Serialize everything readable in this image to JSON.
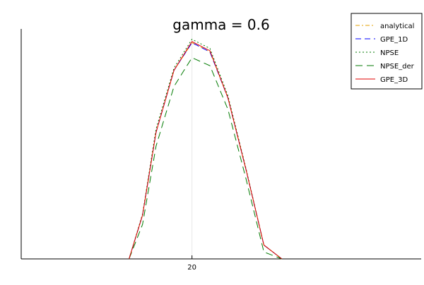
{
  "chart_data": {
    "type": "line",
    "title": "gamma = 0.6",
    "xlabel": "",
    "ylabel": "",
    "xlim": [
      16.2,
      25.1
    ],
    "ylim": [
      0,
      1
    ],
    "xticks": [
      20
    ],
    "xtick_labels": [
      "20"
    ],
    "grid": true,
    "legend_position": "top-right",
    "series": [
      {
        "name": "analytical",
        "color": "#e6a000",
        "dash": "dashdot",
        "x": [
          18.6,
          18.9,
          19.2,
          19.6,
          20.0,
          20.4,
          20.8,
          21.2,
          21.6,
          22.0
        ],
        "y": [
          0.0,
          0.19,
          0.55,
          0.82,
          0.94,
          0.9,
          0.7,
          0.39,
          0.06,
          0.0
        ]
      },
      {
        "name": "GPE_1D",
        "color": "#0000ff",
        "dash": "dash",
        "x": [
          18.6,
          18.9,
          19.2,
          19.6,
          20.0,
          20.4,
          20.8,
          21.2,
          21.6,
          22.0
        ],
        "y": [
          0.0,
          0.19,
          0.55,
          0.82,
          0.94,
          0.9,
          0.7,
          0.39,
          0.06,
          0.0
        ]
      },
      {
        "name": "NPSE",
        "color": "#007a00",
        "dash": "dot",
        "x": [
          18.6,
          18.9,
          19.2,
          19.6,
          20.0,
          20.4,
          20.8,
          21.2,
          21.6,
          22.0
        ],
        "y": [
          0.0,
          0.195,
          0.565,
          0.83,
          0.955,
          0.915,
          0.71,
          0.395,
          0.06,
          0.0
        ]
      },
      {
        "name": "NPSE_der",
        "color": "#007a00",
        "dash": "longdash",
        "x": [
          18.6,
          18.9,
          19.2,
          19.6,
          20.0,
          20.4,
          20.8,
          21.2,
          21.6,
          22.0
        ],
        "y": [
          0.0,
          0.15,
          0.49,
          0.75,
          0.875,
          0.84,
          0.65,
          0.35,
          0.03,
          0.0
        ]
      },
      {
        "name": "GPE_3D",
        "color": "#e00000",
        "dash": "solid",
        "x": [
          18.6,
          18.9,
          19.2,
          19.6,
          20.0,
          20.4,
          20.8,
          21.2,
          21.6,
          22.0
        ],
        "y": [
          0.0,
          0.19,
          0.55,
          0.82,
          0.945,
          0.905,
          0.7,
          0.39,
          0.06,
          0.0
        ]
      }
    ]
  }
}
